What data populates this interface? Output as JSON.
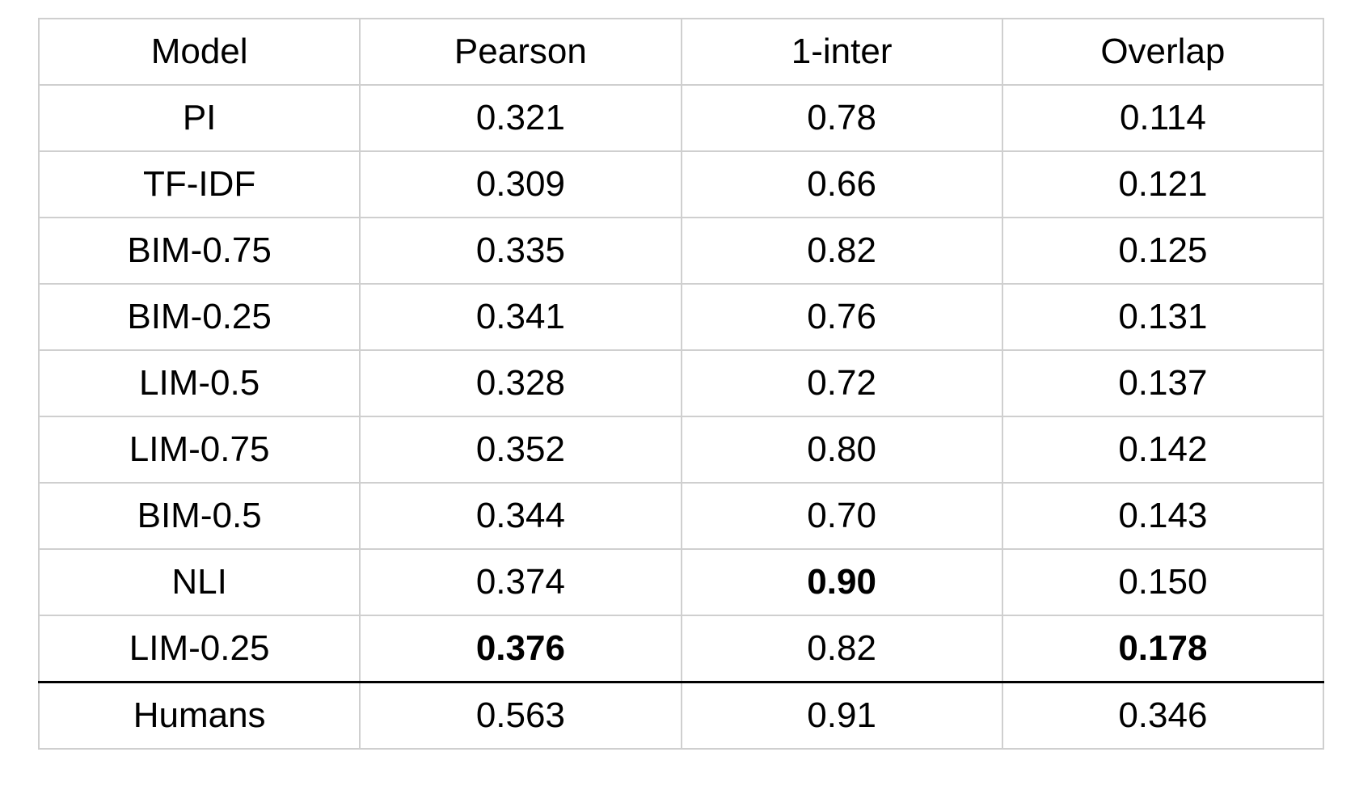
{
  "table": {
    "header": [
      "Model",
      "Pearson",
      "1-inter",
      "Overlap"
    ],
    "rows": [
      [
        "PI",
        "0.321",
        "0.78",
        "0.114"
      ],
      [
        "TF-IDF",
        "0.309",
        "0.66",
        "0.121"
      ],
      [
        "BIM-0.75",
        "0.335",
        "0.82",
        "0.125"
      ],
      [
        "BIM-0.25",
        "0.341",
        "0.76",
        "0.131"
      ],
      [
        "LIM-0.5",
        "0.328",
        "0.72",
        "0.137"
      ],
      [
        "LIM-0.75",
        "0.352",
        "0.80",
        "0.142"
      ],
      [
        "BIM-0.5",
        "0.344",
        "0.70",
        "0.143"
      ],
      [
        "NLI",
        "0.374",
        "0.90",
        "0.150"
      ],
      [
        "LIM-0.25",
        "0.376",
        "0.82",
        "0.178"
      ]
    ],
    "bold_cells": [
      [
        7,
        2
      ],
      [
        8,
        1
      ],
      [
        8,
        3
      ]
    ],
    "footer": [
      [
        "Humans",
        "0.563",
        "0.91",
        "0.346"
      ]
    ]
  }
}
